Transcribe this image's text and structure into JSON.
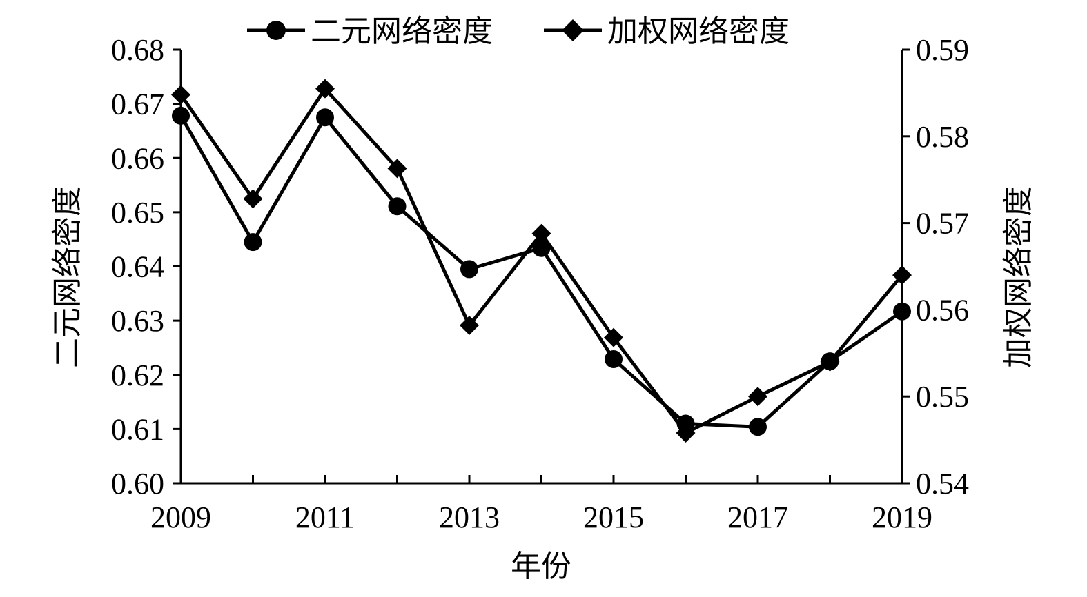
{
  "chart_data": {
    "type": "line",
    "title": "",
    "xlabel": "年份",
    "ylabel_left": "二元网络密度",
    "ylabel_right": "加权网络密度",
    "x": [
      2009,
      2010,
      2011,
      2012,
      2013,
      2014,
      2015,
      2016,
      2017,
      2018,
      2019
    ],
    "x_tick_labels": [
      "2009",
      "2011",
      "2013",
      "2015",
      "2017",
      "2019"
    ],
    "xlim": [
      2009,
      2019
    ],
    "ylim_left": [
      0.6,
      0.68
    ],
    "ylim_right": [
      0.54,
      0.59
    ],
    "left_tick_labels": [
      "0.60",
      "0.61",
      "0.62",
      "0.63",
      "0.64",
      "0.65",
      "0.66",
      "0.67",
      "0.68"
    ],
    "right_tick_labels": [
      "0.54",
      "0.55",
      "0.56",
      "0.57",
      "0.58",
      "0.59"
    ],
    "grid": false,
    "legend_position": "top",
    "series": [
      {
        "name": "二元网络密度",
        "axis": "left",
        "marker": "circle",
        "values": [
          0.6678,
          0.6445,
          0.6675,
          0.6511,
          0.6395,
          0.6434,
          0.6229,
          0.611,
          0.6104,
          0.6225,
          0.6317
        ]
      },
      {
        "name": "加权网络密度",
        "axis": "right",
        "marker": "diamond",
        "values": [
          0.5848,
          0.5728,
          0.5855,
          0.5763,
          0.5582,
          0.5688,
          0.5568,
          0.5458,
          0.55,
          0.554,
          0.564
        ]
      }
    ],
    "colors": {
      "line": "#000000",
      "axis": "#000000"
    }
  }
}
